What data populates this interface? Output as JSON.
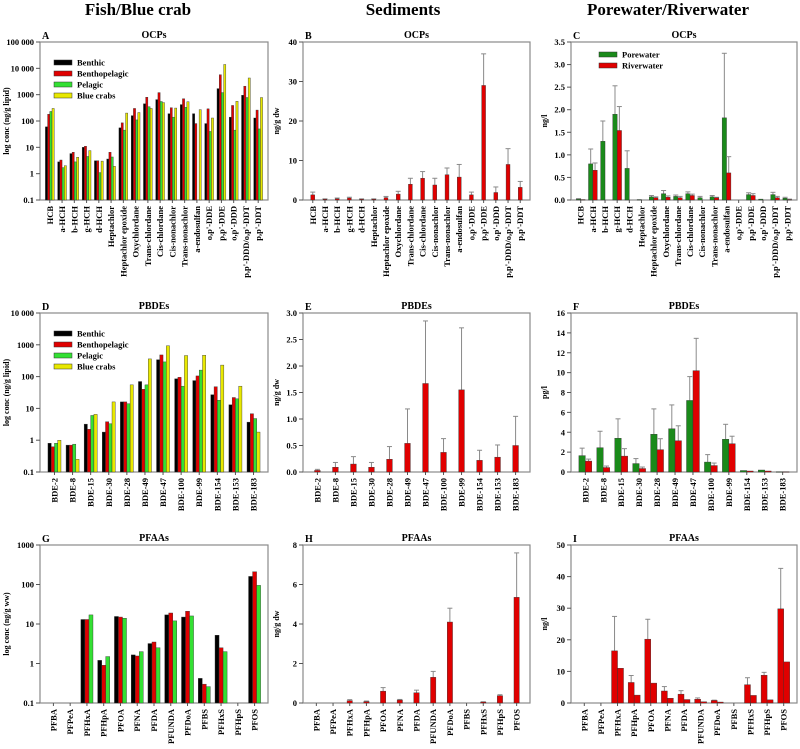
{
  "column_headers": [
    "Fish/Blue crab",
    "Sediments",
    "Porewater/Riverwater"
  ],
  "colors": {
    "Benthic": "#000000",
    "Benthopelagic": "#e00000",
    "Pelagic": "#33e033",
    "Blue crabs": "#e8e800",
    "Porewater": "#1a8a1a",
    "Riverwater": "#e00000",
    "error": "#8a8a8a"
  },
  "chart_data": [
    {
      "panel": "A",
      "title": "OCPs",
      "type": "bar",
      "scale": "log",
      "ylim": [
        0.1,
        100000
      ],
      "ylabel": "log conc (ng/g lipid)",
      "yticks": [
        0.1,
        1,
        10,
        100,
        1000,
        10000,
        100000
      ],
      "ytick_labels": [
        "0.1",
        "1",
        "10",
        "100",
        "1000",
        "10 000",
        "100 000"
      ],
      "legend": "top-left",
      "categories": [
        "HCB",
        "a-HCH",
        "b-HCH",
        "g-HCH",
        "d-HCH",
        "Heptachlor",
        "Heptachlor epoxide",
        "Oxychlordane",
        "Trans-chlordane",
        "Cis-chlordane",
        "Cis-nonachlor",
        "Trans-nonachlor",
        "a-endosulfan",
        "o,p'-DDE",
        "p,p'-DDE",
        "o,p'-DDD",
        "p,p'-DDD/o,p'-DDT",
        "p,p'-DDT"
      ],
      "series": [
        {
          "name": "Benthic",
          "values": [
            60,
            2.8,
            5.8,
            10,
            3.1,
            3.6,
            55,
            160,
            450,
            650,
            190,
            420,
            190,
            80,
            1700,
            140,
            950,
            130
          ]
        },
        {
          "name": "Benthopelagic",
          "values": [
            180,
            3.3,
            6.5,
            11,
            3.1,
            6.5,
            85,
            300,
            800,
            1200,
            320,
            700,
            80,
            290,
            5700,
            390,
            2100,
            260
          ]
        },
        {
          "name": "Pelagic",
          "values": [
            230,
            1.7,
            2.8,
            4.5,
            1.1,
            4.3,
            45,
            110,
            350,
            550,
            140,
            330,
            null,
            40,
            1200,
            45,
            780,
            50
          ]
        },
        {
          "name": "Blue crabs",
          "values": [
            300,
            2.0,
            4.2,
            7.5,
            3.0,
            1.9,
            200,
            210,
            300,
            500,
            310,
            540,
            270,
            130,
            14000,
            560,
            4300,
            780
          ]
        }
      ]
    },
    {
      "panel": "B",
      "title": "OCPs",
      "type": "bar",
      "scale": "linear",
      "ylim": [
        0,
        40
      ],
      "ylabel": "ng/g dw",
      "yticks": [
        0,
        10,
        20,
        30,
        40
      ],
      "ytick_labels": [
        "0",
        "10",
        "20",
        "30",
        "40"
      ],
      "categories": [
        "HCB",
        "a-HCH",
        "b-HCH",
        "g-HCH",
        "d-HCH",
        "Heptachlor",
        "Heptachlor epoxide",
        "Oxychlordane",
        "Trans-chlordane",
        "Cis-chlordane",
        "Cis-nonachlor",
        "Trans-nonachlor",
        "a-endosulfan",
        "o,p'-DDE",
        "p,p'-DDE",
        "o,p'-DDD",
        "p,p'-DDD/o,p'-DDT",
        "p,p'-DDT"
      ],
      "series": [
        {
          "name": "Sediments",
          "values": [
            1.3,
            0.2,
            0.3,
            0.5,
            0.2,
            0.2,
            0.6,
            1.5,
            4.0,
            5.5,
            3.8,
            6.4,
            5.8,
            1.3,
            29,
            1.9,
            9,
            3.2
          ],
          "error_top": [
            2.0,
            0.3,
            0.5,
            0.7,
            0.3,
            0.3,
            0.9,
            2.2,
            5.5,
            7.2,
            5.5,
            8.1,
            9.0,
            2.0,
            37,
            3.3,
            13,
            4.7
          ]
        }
      ]
    },
    {
      "panel": "C",
      "title": "OCPs",
      "type": "bar",
      "scale": "linear",
      "ylim": [
        0,
        3.5
      ],
      "ylabel": "ng/l",
      "yticks": [
        0,
        0.5,
        1,
        1.5,
        2,
        2.5,
        3,
        3.5
      ],
      "ytick_labels": [
        "0.0",
        "0.5",
        "1.0",
        "1.5",
        "2.0",
        "2.5",
        "3.0",
        "3.5"
      ],
      "legend": "top-left",
      "categories": [
        "HCB",
        "a-HCH",
        "b-HCH",
        "g-HCH",
        "d-HCH",
        "Heptachlor",
        "Heptachlor epoxide",
        "Oxychlordane",
        "Trans-chlordane",
        "Cis-chlordane",
        "Cis-nonachlor",
        "Trans-nonachlor",
        "a-endosulfan",
        "o,p'-DDE",
        "p,p'-DDE",
        "o,p'-DDD",
        "p,p'-DDD/o,p'-DDT",
        "p,p'-DDT"
      ],
      "series": [
        {
          "name": "Porewater",
          "values": [
            0.02,
            0.8,
            1.3,
            1.9,
            0.7,
            0.01,
            0.07,
            0.14,
            0.08,
            0.14,
            0.05,
            0.07,
            1.82,
            0,
            0.12,
            0.02,
            0.12,
            0.04
          ],
          "error_top": [
            0.03,
            1.13,
            1.75,
            2.53,
            1.09,
            0.01,
            0.1,
            0.21,
            0.11,
            0.18,
            0.08,
            0.1,
            3.25,
            0,
            0.16,
            0.02,
            0.17,
            0.06
          ]
        },
        {
          "name": "Riverwater",
          "values": [
            0.01,
            0.66,
            0,
            1.54,
            0,
            0,
            0.05,
            0.06,
            0.05,
            0.1,
            0,
            0.05,
            0.6,
            0,
            0.1,
            0,
            0.05,
            0.01
          ],
          "error_top": [
            0.01,
            0.82,
            0,
            2.07,
            0,
            0,
            0.07,
            0.09,
            0.08,
            0.13,
            0,
            0.06,
            0.96,
            0,
            0.14,
            0,
            0.08,
            0.02
          ]
        }
      ]
    },
    {
      "panel": "D",
      "title": "PBDEs",
      "type": "bar",
      "scale": "log",
      "ylim": [
        0.1,
        10000
      ],
      "ylabel": "log conc (ng/g lipid)",
      "yticks": [
        0.1,
        1,
        10,
        100,
        1000,
        10000
      ],
      "ytick_labels": [
        "0.1",
        "1",
        "10",
        "100",
        "1000",
        "10 000"
      ],
      "legend": "top-left",
      "categories": [
        "BDE-2",
        "BDE-8",
        "BDE-15",
        "BDE-30",
        "BDE-28",
        "BDE-49",
        "BDE-47",
        "BDE-100",
        "BDE-99",
        "BDE-154",
        "BDE-153",
        "BDE-183"
      ],
      "series": [
        {
          "name": "Benthic",
          "values": [
            0.8,
            0.7,
            3.2,
            1.8,
            16,
            70,
            340,
            85,
            75,
            27,
            13,
            3.7
          ]
        },
        {
          "name": "Benthopelagic",
          "values": [
            0.62,
            0.7,
            2.2,
            3.8,
            16,
            40,
            480,
            95,
            105,
            48,
            22,
            6.8
          ]
        },
        {
          "name": "Pelagic",
          "values": [
            0.8,
            0.75,
            6,
            3.3,
            14,
            55,
            290,
            50,
            160,
            18,
            20,
            4.8
          ]
        },
        {
          "name": "Blue crabs",
          "values": [
            1.0,
            0.25,
            6.5,
            16,
            55,
            360,
            930,
            460,
            470,
            230,
            50,
            1.8
          ]
        }
      ]
    },
    {
      "panel": "E",
      "title": "PBDEs",
      "type": "bar",
      "scale": "linear",
      "ylim": [
        0,
        3
      ],
      "ylabel": "ng/g dw",
      "yticks": [
        0,
        0.5,
        1,
        1.5,
        2,
        2.5,
        3
      ],
      "ytick_labels": [
        "0.0",
        "0.5",
        "1.0",
        "1.5",
        "2.0",
        "2.5",
        "3.0"
      ],
      "categories": [
        "BDE-2",
        "BDE-8",
        "BDE-15",
        "BDE-30",
        "BDE-28",
        "BDE-49",
        "BDE-47",
        "BDE-100",
        "BDE-99",
        "BDE-154",
        "BDE-153",
        "BDE-183"
      ],
      "series": [
        {
          "name": "Sediments",
          "values": [
            0.03,
            0.09,
            0.15,
            0.09,
            0.24,
            0.54,
            1.67,
            0.37,
            1.55,
            0.22,
            0.28,
            0.5
          ],
          "error_top": [
            0.05,
            0.18,
            0.29,
            0.18,
            0.48,
            1.19,
            2.85,
            0.63,
            2.72,
            0.41,
            0.51,
            1.05
          ]
        }
      ]
    },
    {
      "panel": "F",
      "title": "PBDEs",
      "type": "bar",
      "scale": "linear",
      "ylim": [
        0,
        16
      ],
      "ylabel": "pg/l",
      "yticks": [
        0,
        2,
        4,
        6,
        8,
        10,
        12,
        14,
        16
      ],
      "ytick_labels": [
        "0",
        "2",
        "4",
        "6",
        "8",
        "10",
        "12",
        "14",
        "16"
      ],
      "categories": [
        "BDE-2",
        "BDE-8",
        "BDE-15",
        "BDE-30",
        "BDE-28",
        "BDE-49",
        "BDE-47",
        "BDE-100",
        "BDE-99",
        "BDE-154",
        "BDE-153",
        "BDE-183"
      ],
      "series": [
        {
          "name": "Porewater",
          "values": [
            1.65,
            2.45,
            3.4,
            0.85,
            3.8,
            4.35,
            7.2,
            1.0,
            3.3,
            0.15,
            0.2,
            0.02
          ],
          "error_top": [
            2.4,
            4.1,
            5.35,
            1.35,
            6.35,
            6.75,
            9.6,
            1.75,
            4.8,
            0.15,
            0.2,
            0.02
          ]
        },
        {
          "name": "Riverwater",
          "values": [
            1.1,
            0.45,
            1.6,
            0.35,
            2.25,
            3.15,
            10.2,
            0.65,
            2.85,
            0.1,
            0.1,
            0.02
          ],
          "error_top": [
            1.3,
            0.6,
            2.35,
            0.5,
            3.35,
            4.65,
            13.45,
            0.9,
            3.6,
            0.1,
            0.1,
            0.02
          ]
        }
      ]
    },
    {
      "panel": "G",
      "title": "PFAAs",
      "type": "bar",
      "scale": "log",
      "ylim": [
        0.1,
        1000
      ],
      "ylabel": "log conc (ng/g ww)",
      "yticks": [
        0.1,
        1,
        10,
        100,
        1000
      ],
      "ytick_labels": [
        "0.1",
        "1",
        "10",
        "100",
        "1000"
      ],
      "categories": [
        "PFBA",
        "PFPeA",
        "PFHxA",
        "PFHpA",
        "PFOA",
        "PFNA",
        "PFDA",
        "PFUNDA",
        "PFDoA",
        "PFBS",
        "PFHxS",
        "PFHpS",
        "PFOS"
      ],
      "series": [
        {
          "name": "Benthic",
          "values": [
            null,
            null,
            13,
            1.2,
            15.5,
            1.65,
            3.2,
            17,
            15,
            0.42,
            5.2,
            null,
            160
          ]
        },
        {
          "name": "Benthopelagic",
          "values": [
            null,
            null,
            13,
            0.9,
            15,
            1.55,
            3.5,
            19,
            21,
            0.3,
            2.5,
            null,
            210
          ]
        },
        {
          "name": "Pelagic",
          "values": [
            null,
            null,
            17,
            1.5,
            14,
            2.0,
            2.5,
            12,
            16,
            0.26,
            2.0,
            null,
            95
          ]
        }
      ]
    },
    {
      "panel": "H",
      "title": "PFAAs",
      "type": "bar",
      "scale": "linear",
      "ylim": [
        0,
        8
      ],
      "ylabel": "ng/g dw",
      "yticks": [
        0,
        2,
        4,
        6,
        8
      ],
      "ytick_labels": [
        "0",
        "2",
        "4",
        "6",
        "8"
      ],
      "categories": [
        "PFBA",
        "PFPeA",
        "PFHxA",
        "PFHpA",
        "PFOA",
        "PFNA",
        "PFDA",
        "PFUNDA",
        "PFDoA",
        "PFBS",
        "PFHxS",
        "PFHpS",
        "PFOS"
      ],
      "series": [
        {
          "name": "Sediments",
          "values": [
            0,
            0,
            0.12,
            0.07,
            0.6,
            0.15,
            0.52,
            1.3,
            4.1,
            0,
            0.05,
            0.37,
            5.35
          ],
          "error_top": [
            0,
            0,
            0.17,
            0.1,
            0.78,
            0.18,
            0.65,
            1.6,
            4.8,
            0,
            0.06,
            0.42,
            7.6
          ]
        }
      ]
    },
    {
      "panel": "I",
      "title": "PFAAs",
      "type": "bar",
      "scale": "linear",
      "ylim": [
        0,
        50
      ],
      "ylabel": "ng/l",
      "yticks": [
        0,
        10,
        20,
        30,
        40,
        50
      ],
      "ytick_labels": [
        "0",
        "10",
        "20",
        "30",
        "40",
        "50"
      ],
      "categories": [
        "PFBA",
        "PFPeA",
        "PFHxA",
        "PFHpA",
        "PFOA",
        "PFNA",
        "PFDA",
        "PFUNDA",
        "PFDoA",
        "PFBS",
        "PFHxS",
        "PFHpS",
        "PFOS"
      ],
      "series": [
        {
          "name": "",
          "values": [
            0,
            0,
            16.5,
            6.5,
            20.2,
            3.8,
            2.8,
            1.2,
            0.8,
            0,
            5.8,
            8.8,
            29.8
          ],
          "error_top": [
            0,
            0,
            27.4,
            8.7,
            26.5,
            5.2,
            3.9,
            1.6,
            0.9,
            0,
            8.0,
            9.7,
            42.6
          ]
        },
        {
          "name": "",
          "values": [
            0,
            0,
            11,
            2.5,
            6.3,
            1.5,
            1.1,
            0.4,
            0.3,
            0,
            2.4,
            1.0,
            13
          ]
        }
      ]
    }
  ]
}
